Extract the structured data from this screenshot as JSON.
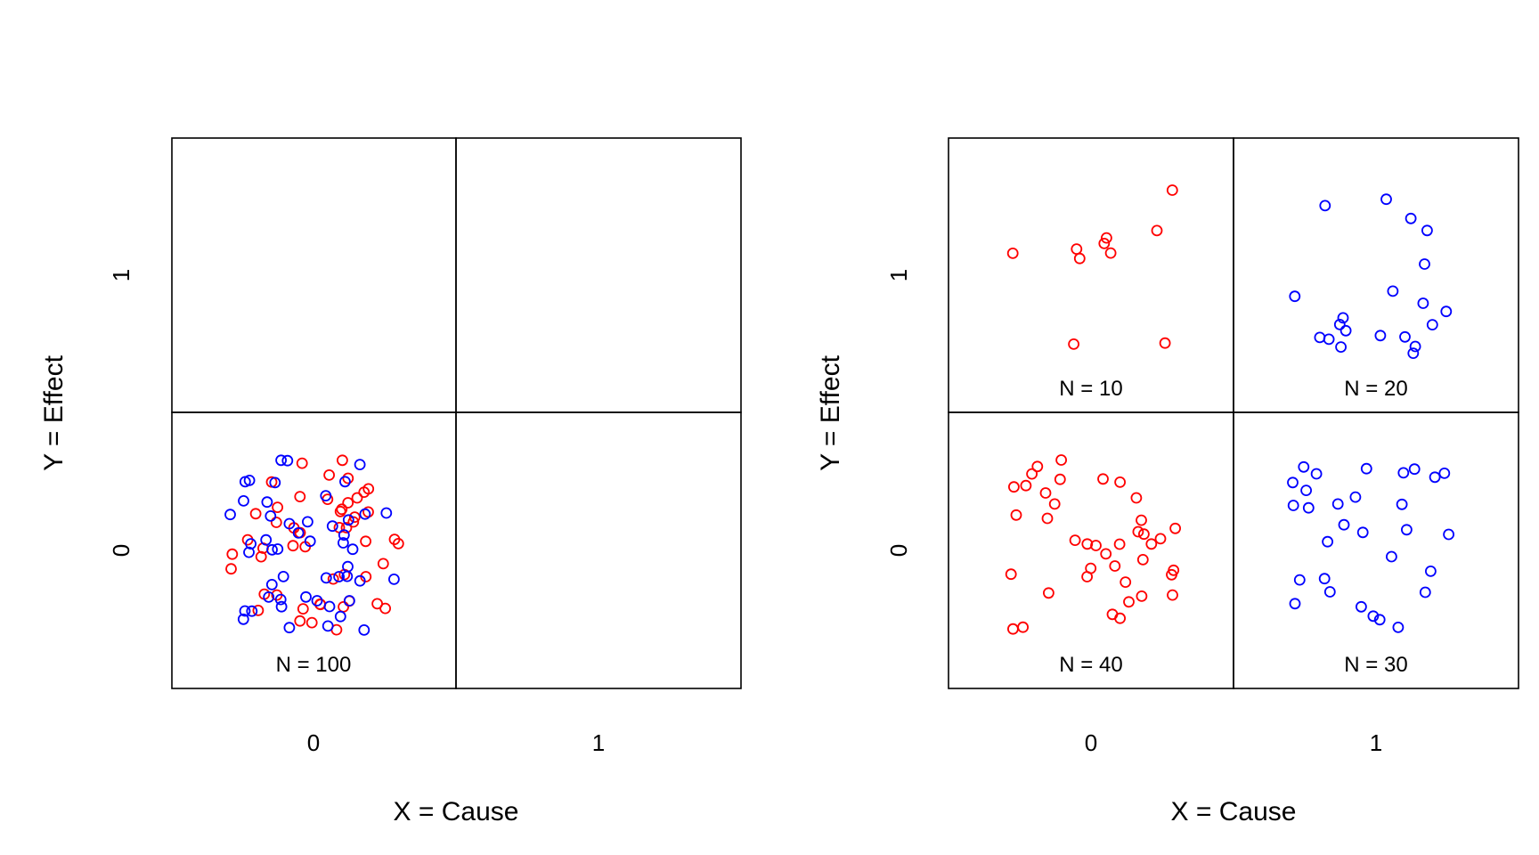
{
  "colors": {
    "red_group": "#ff0000",
    "blue_group": "#0000ff"
  },
  "chart_data": [
    {
      "type": "scatter",
      "xlabel": "X = Cause",
      "ylabel": "Y = Effect",
      "x_ticks": [
        "0",
        "1"
      ],
      "y_ticks": [
        "0",
        "1"
      ],
      "cells": [
        {
          "x": "0",
          "y": "0",
          "count_label": "N =  100",
          "red": 50,
          "blue": 50,
          "color": "mixed"
        },
        {
          "x": "1",
          "y": "0",
          "count_label": "",
          "red": 0,
          "blue": 0,
          "color": "none"
        },
        {
          "x": "0",
          "y": "1",
          "count_label": "",
          "red": 0,
          "blue": 0,
          "color": "none"
        },
        {
          "x": "1",
          "y": "1",
          "count_label": "",
          "red": 0,
          "blue": 0,
          "color": "none"
        }
      ]
    },
    {
      "type": "scatter",
      "xlabel": "X = Cause",
      "ylabel": "Y = Effect",
      "x_ticks": [
        "0",
        "1"
      ],
      "y_ticks": [
        "0",
        "1"
      ],
      "cells": [
        {
          "x": "0",
          "y": "1",
          "count_label": "N =  10",
          "red": 10,
          "blue": 0,
          "color": "red"
        },
        {
          "x": "1",
          "y": "1",
          "count_label": "N =  20",
          "red": 0,
          "blue": 20,
          "color": "blue"
        },
        {
          "x": "0",
          "y": "0",
          "count_label": "N =  40",
          "red": 40,
          "blue": 0,
          "color": "red"
        },
        {
          "x": "1",
          "y": "0",
          "count_label": "N =  30",
          "red": 0,
          "blue": 30,
          "color": "blue"
        }
      ]
    }
  ]
}
